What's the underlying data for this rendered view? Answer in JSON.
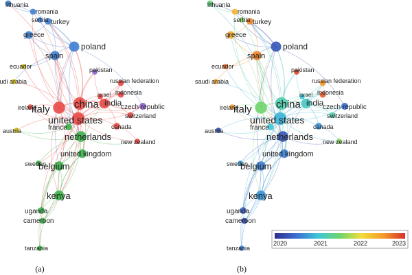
{
  "figure": {
    "panels": [
      {
        "id": "a",
        "caption": "(a)",
        "coloring": "cluster"
      },
      {
        "id": "b",
        "caption": "(b)",
        "coloring": "overlay-year"
      }
    ],
    "colorbar": {
      "ticks": [
        "2020",
        "2021",
        "2022",
        "2023"
      ],
      "stops": [
        "#2f2f8f",
        "#3a6fd0",
        "#3fc6d8",
        "#6fd46a",
        "#f2dd3a",
        "#f59a2a",
        "#d6312b"
      ]
    },
    "cluster_colors": {
      "red": "#e84a46",
      "green": "#3cb34b",
      "blue": "#3f7fd1",
      "purple": "#8c63c9",
      "yellow": "#d8c21b",
      "cyan": "#3fbad0"
    }
  },
  "network": {
    "nodes": [
      {
        "id": "lithuania",
        "label": "lithuania",
        "cluster": "blue",
        "year": 2021.4,
        "weight": 1.0
      },
      {
        "id": "romania",
        "label": "romania",
        "cluster": "blue",
        "year": 2022.3,
        "weight": 1.0
      },
      {
        "id": "serbia",
        "label": "serbia",
        "cluster": "blue",
        "year": 2021.6,
        "weight": 0.8
      },
      {
        "id": "turkey",
        "label": "turkey",
        "cluster": "blue",
        "year": 2022.6,
        "weight": 1.2
      },
      {
        "id": "greece",
        "label": "greece",
        "cluster": "blue",
        "year": 2022.4,
        "weight": 1.5
      },
      {
        "id": "poland",
        "label": "poland",
        "cluster": "blue",
        "year": 2020.3,
        "weight": 2.3
      },
      {
        "id": "spain",
        "label": "spain",
        "cluster": "blue",
        "year": 2022.6,
        "weight": 2.0
      },
      {
        "id": "ecuador",
        "label": "ecuador",
        "cluster": "yellow",
        "year": 2022.7,
        "weight": 0.8
      },
      {
        "id": "pakistan",
        "label": "pakistan",
        "cluster": "purple",
        "year": 2022.9,
        "weight": 0.8
      },
      {
        "id": "saudi_arabia",
        "label": "saudi arabia",
        "cluster": "yellow",
        "year": 2022.4,
        "weight": 0.8
      },
      {
        "id": "russian_federation",
        "label": "russian federation",
        "cluster": "red",
        "year": 2022.5,
        "weight": 1.0
      },
      {
        "id": "indonesia",
        "label": "indonesia",
        "cluster": "red",
        "year": 2022.8,
        "weight": 1.0
      },
      {
        "id": "israel",
        "label": "israel",
        "cluster": "red",
        "year": 2021.0,
        "weight": 0.8
      },
      {
        "id": "china",
        "label": "china",
        "cluster": "red",
        "year": 2021.2,
        "weight": 3.0
      },
      {
        "id": "italy",
        "label": "italy",
        "cluster": "red",
        "year": 2021.5,
        "weight": 2.8
      },
      {
        "id": "india",
        "label": "india",
        "cluster": "red",
        "year": 2021.1,
        "weight": 2.2
      },
      {
        "id": "czech_republic",
        "label": "czech republic",
        "cluster": "purple",
        "year": 2020.5,
        "weight": 1.3
      },
      {
        "id": "ireland",
        "label": "ireland",
        "cluster": "red",
        "year": 2022.5,
        "weight": 0.8
      },
      {
        "id": "switzerland",
        "label": "switzerland",
        "cluster": "red",
        "year": 2021.2,
        "weight": 1.0
      },
      {
        "id": "united_states",
        "label": "united states",
        "cluster": "red",
        "year": 2020.9,
        "weight": 3.0
      },
      {
        "id": "canada",
        "label": "canada",
        "cluster": "red",
        "year": 2020.7,
        "weight": 1.2
      },
      {
        "id": "france",
        "label": "france",
        "cluster": "green",
        "year": 2021.0,
        "weight": 1.2
      },
      {
        "id": "austria",
        "label": "austria",
        "cluster": "yellow",
        "year": 2020.2,
        "weight": 0.8
      },
      {
        "id": "netherlands",
        "label": "netherlands",
        "cluster": "green",
        "year": 2020.3,
        "weight": 2.4
      },
      {
        "id": "new_zealand",
        "label": "new zealand",
        "cluster": "red",
        "year": 2021.6,
        "weight": 0.8
      },
      {
        "id": "united_kingdom",
        "label": "united kingdom",
        "cluster": "green",
        "year": 2020.6,
        "weight": 1.8
      },
      {
        "id": "sweden",
        "label": "sweden",
        "cluster": "green",
        "year": 2020.8,
        "weight": 0.8
      },
      {
        "id": "belgium",
        "label": "belgium",
        "cluster": "green",
        "year": 2020.6,
        "weight": 2.0
      },
      {
        "id": "kenya",
        "label": "kenya",
        "cluster": "green",
        "year": 2020.7,
        "weight": 2.2
      },
      {
        "id": "uganda",
        "label": "uganda",
        "cluster": "green",
        "year": 2020.4,
        "weight": 1.2
      },
      {
        "id": "cameroon",
        "label": "cameroon",
        "cluster": "green",
        "year": 2020.2,
        "weight": 1.0
      },
      {
        "id": "tanzania",
        "label": "tanzania",
        "cluster": "green",
        "year": 2020.6,
        "weight": 0.8
      }
    ],
    "edges": [
      [
        "united_states",
        "china"
      ],
      [
        "united_states",
        "italy"
      ],
      [
        "united_states",
        "india"
      ],
      [
        "united_states",
        "netherlands"
      ],
      [
        "united_states",
        "united_kingdom"
      ],
      [
        "united_states",
        "poland"
      ],
      [
        "united_states",
        "spain"
      ],
      [
        "united_states",
        "kenya"
      ],
      [
        "united_states",
        "belgium"
      ],
      [
        "united_states",
        "czech_republic"
      ],
      [
        "united_states",
        "switzerland"
      ],
      [
        "united_states",
        "france"
      ],
      [
        "united_states",
        "canada"
      ],
      [
        "united_states",
        "russian_federation"
      ],
      [
        "united_states",
        "greece"
      ],
      [
        "united_states",
        "turkey"
      ],
      [
        "united_states",
        "pakistan"
      ],
      [
        "united_states",
        "new_zealand"
      ],
      [
        "united_states",
        "ireland"
      ],
      [
        "united_states",
        "uganda"
      ],
      [
        "united_states",
        "cameroon"
      ],
      [
        "united_states",
        "tanzania"
      ],
      [
        "united_states",
        "sweden"
      ],
      [
        "united_states",
        "austria"
      ],
      [
        "united_states",
        "indonesia"
      ],
      [
        "united_states",
        "saudi_arabia"
      ],
      [
        "united_states",
        "ecuador"
      ],
      [
        "united_states",
        "lithuania"
      ],
      [
        "italy",
        "china"
      ],
      [
        "italy",
        "spain"
      ],
      [
        "italy",
        "poland"
      ],
      [
        "italy",
        "greece"
      ],
      [
        "italy",
        "india"
      ],
      [
        "italy",
        "netherlands"
      ],
      [
        "italy",
        "france"
      ],
      [
        "italy",
        "ireland"
      ],
      [
        "italy",
        "belgium"
      ],
      [
        "italy",
        "kenya"
      ],
      [
        "italy",
        "romania"
      ],
      [
        "italy",
        "serbia"
      ],
      [
        "china",
        "india"
      ],
      [
        "china",
        "poland"
      ],
      [
        "china",
        "spain"
      ],
      [
        "china",
        "netherlands"
      ],
      [
        "china",
        "united_kingdom"
      ],
      [
        "china",
        "turkey"
      ],
      [
        "china",
        "pakistan"
      ],
      [
        "china",
        "russian_federation"
      ],
      [
        "china",
        "indonesia"
      ],
      [
        "china",
        "czech_republic"
      ],
      [
        "china",
        "kenya"
      ],
      [
        "poland",
        "spain"
      ],
      [
        "poland",
        "greece"
      ],
      [
        "poland",
        "lithuania"
      ],
      [
        "poland",
        "romania"
      ],
      [
        "poland",
        "serbia"
      ],
      [
        "poland",
        "turkey"
      ],
      [
        "poland",
        "netherlands"
      ],
      [
        "poland",
        "czech_republic"
      ],
      [
        "poland",
        "belgium"
      ],
      [
        "spain",
        "greece"
      ],
      [
        "spain",
        "turkey"
      ],
      [
        "spain",
        "ecuador"
      ],
      [
        "spain",
        "saudi_arabia"
      ],
      [
        "spain",
        "france"
      ],
      [
        "spain",
        "netherlands"
      ],
      [
        "netherlands",
        "belgium"
      ],
      [
        "netherlands",
        "united_kingdom"
      ],
      [
        "netherlands",
        "kenya"
      ],
      [
        "netherlands",
        "uganda"
      ],
      [
        "netherlands",
        "france"
      ],
      [
        "netherlands",
        "sweden"
      ],
      [
        "netherlands",
        "austria"
      ],
      [
        "netherlands",
        "new_zealand"
      ],
      [
        "belgium",
        "kenya"
      ],
      [
        "belgium",
        "uganda"
      ],
      [
        "belgium",
        "cameroon"
      ],
      [
        "belgium",
        "tanzania"
      ],
      [
        "belgium",
        "sweden"
      ],
      [
        "kenya",
        "uganda"
      ],
      [
        "kenya",
        "cameroon"
      ],
      [
        "kenya",
        "tanzania"
      ],
      [
        "kenya",
        "united_kingdom"
      ],
      [
        "united_kingdom",
        "kenya"
      ],
      [
        "united_kingdom",
        "india"
      ],
      [
        "united_kingdom",
        "belgium"
      ],
      [
        "india",
        "pakistan"
      ],
      [
        "india",
        "czech_republic"
      ],
      [
        "india",
        "switzerland"
      ],
      [
        "india",
        "russian_federation"
      ],
      [
        "india",
        "israel"
      ],
      [
        "czech_republic",
        "switzerland"
      ],
      [
        "canada",
        "new_zealand"
      ],
      [
        "canada",
        "india"
      ],
      [
        "france",
        "austria"
      ],
      [
        "ireland",
        "france"
      ],
      [
        "turkey",
        "greece"
      ],
      [
        "lithuania",
        "romania"
      ],
      [
        "russian_federation",
        "indonesia"
      ]
    ]
  }
}
